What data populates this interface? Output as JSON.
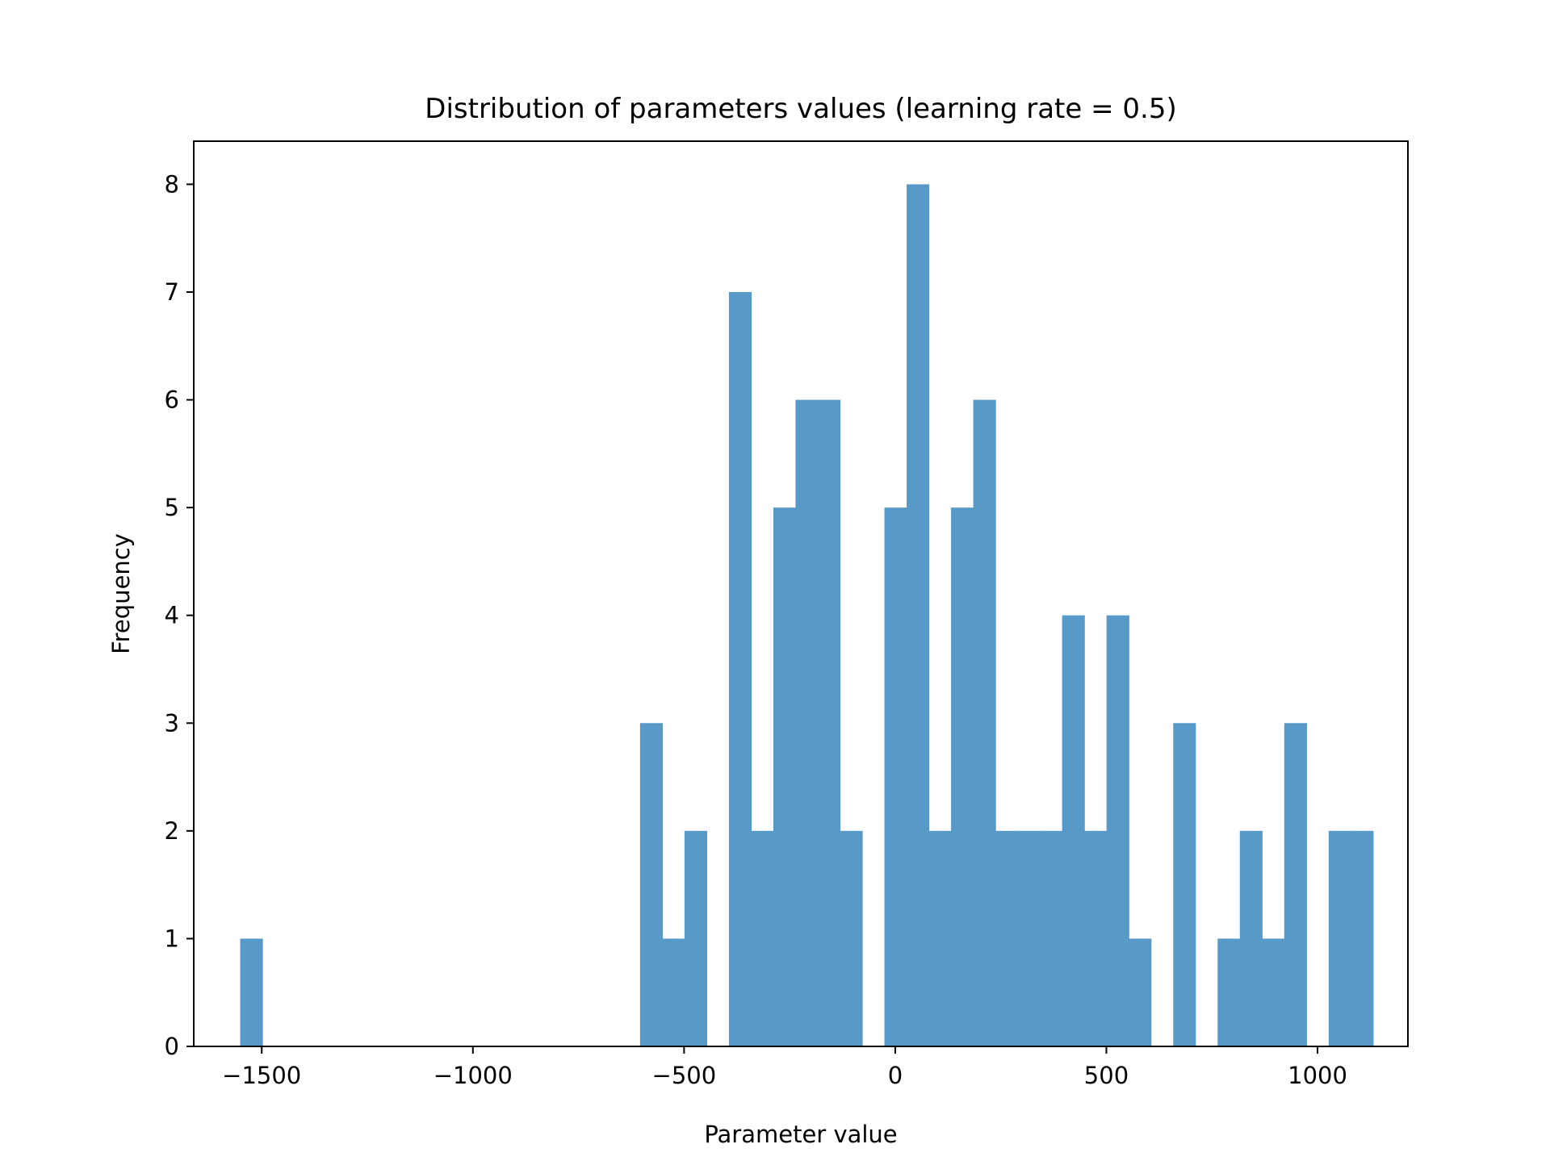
{
  "chart_data": {
    "type": "bar",
    "title": "Distribution of parameters values (learning rate = 0.5)",
    "xlabel": "Parameter value",
    "ylabel": "Frequency",
    "xlim": [
      -1661,
      1214
    ],
    "ylim": [
      0,
      8.4
    ],
    "xticks": [
      -1500,
      -1000,
      -500,
      0,
      500,
      1000
    ],
    "xtick_labels": [
      "−1500",
      "−1000",
      "−500",
      "0",
      "500",
      "1000"
    ],
    "yticks": [
      0,
      1,
      2,
      3,
      4,
      5,
      6,
      7,
      8
    ],
    "ytick_labels": [
      "0",
      "1",
      "2",
      "3",
      "4",
      "5",
      "6",
      "7",
      "8"
    ],
    "grid": false,
    "bar_color": "#5799c7",
    "bins": {
      "start": -1551,
      "width": 52.6,
      "counts": [
        1,
        0,
        0,
        0,
        0,
        0,
        0,
        0,
        0,
        0,
        0,
        0,
        0,
        0,
        0,
        0,
        0,
        0,
        3,
        1,
        2,
        0,
        7,
        2,
        5,
        6,
        6,
        2,
        0,
        5,
        8,
        2,
        5,
        6,
        2,
        2,
        2,
        4,
        2,
        4,
        1,
        0,
        3,
        0,
        1,
        2,
        1,
        3,
        0,
        2,
        2
      ]
    }
  }
}
